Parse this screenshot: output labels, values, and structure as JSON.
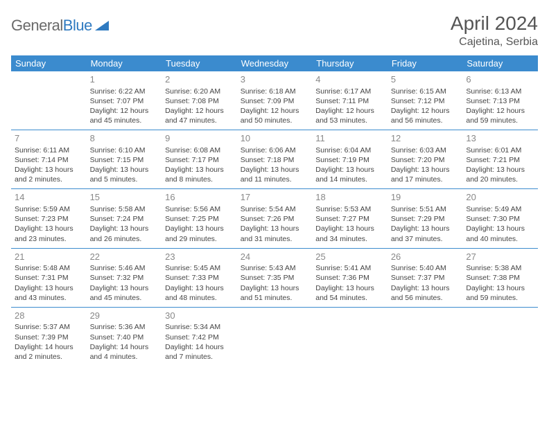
{
  "logo": {
    "text1": "General",
    "text2": "Blue"
  },
  "title": "April 2024",
  "location": "Cajetina, Serbia",
  "colors": {
    "header_bg": "#3b8bce",
    "header_text": "#ffffff",
    "grid_line": "#3b8bce",
    "body_text": "#444444",
    "daynum": "#888888",
    "logo_gray": "#6a6a6a",
    "logo_blue": "#2f7ac0"
  },
  "day_labels": [
    "Sunday",
    "Monday",
    "Tuesday",
    "Wednesday",
    "Thursday",
    "Friday",
    "Saturday"
  ],
  "weeks": [
    [
      null,
      {
        "n": "1",
        "sr": "6:22 AM",
        "ss": "7:07 PM",
        "dl": "12 hours and 45 minutes."
      },
      {
        "n": "2",
        "sr": "6:20 AM",
        "ss": "7:08 PM",
        "dl": "12 hours and 47 minutes."
      },
      {
        "n": "3",
        "sr": "6:18 AM",
        "ss": "7:09 PM",
        "dl": "12 hours and 50 minutes."
      },
      {
        "n": "4",
        "sr": "6:17 AM",
        "ss": "7:11 PM",
        "dl": "12 hours and 53 minutes."
      },
      {
        "n": "5",
        "sr": "6:15 AM",
        "ss": "7:12 PM",
        "dl": "12 hours and 56 minutes."
      },
      {
        "n": "6",
        "sr": "6:13 AM",
        "ss": "7:13 PM",
        "dl": "12 hours and 59 minutes."
      }
    ],
    [
      {
        "n": "7",
        "sr": "6:11 AM",
        "ss": "7:14 PM",
        "dl": "13 hours and 2 minutes."
      },
      {
        "n": "8",
        "sr": "6:10 AM",
        "ss": "7:15 PM",
        "dl": "13 hours and 5 minutes."
      },
      {
        "n": "9",
        "sr": "6:08 AM",
        "ss": "7:17 PM",
        "dl": "13 hours and 8 minutes."
      },
      {
        "n": "10",
        "sr": "6:06 AM",
        "ss": "7:18 PM",
        "dl": "13 hours and 11 minutes."
      },
      {
        "n": "11",
        "sr": "6:04 AM",
        "ss": "7:19 PM",
        "dl": "13 hours and 14 minutes."
      },
      {
        "n": "12",
        "sr": "6:03 AM",
        "ss": "7:20 PM",
        "dl": "13 hours and 17 minutes."
      },
      {
        "n": "13",
        "sr": "6:01 AM",
        "ss": "7:21 PM",
        "dl": "13 hours and 20 minutes."
      }
    ],
    [
      {
        "n": "14",
        "sr": "5:59 AM",
        "ss": "7:23 PM",
        "dl": "13 hours and 23 minutes."
      },
      {
        "n": "15",
        "sr": "5:58 AM",
        "ss": "7:24 PM",
        "dl": "13 hours and 26 minutes."
      },
      {
        "n": "16",
        "sr": "5:56 AM",
        "ss": "7:25 PM",
        "dl": "13 hours and 29 minutes."
      },
      {
        "n": "17",
        "sr": "5:54 AM",
        "ss": "7:26 PM",
        "dl": "13 hours and 31 minutes."
      },
      {
        "n": "18",
        "sr": "5:53 AM",
        "ss": "7:27 PM",
        "dl": "13 hours and 34 minutes."
      },
      {
        "n": "19",
        "sr": "5:51 AM",
        "ss": "7:29 PM",
        "dl": "13 hours and 37 minutes."
      },
      {
        "n": "20",
        "sr": "5:49 AM",
        "ss": "7:30 PM",
        "dl": "13 hours and 40 minutes."
      }
    ],
    [
      {
        "n": "21",
        "sr": "5:48 AM",
        "ss": "7:31 PM",
        "dl": "13 hours and 43 minutes."
      },
      {
        "n": "22",
        "sr": "5:46 AM",
        "ss": "7:32 PM",
        "dl": "13 hours and 45 minutes."
      },
      {
        "n": "23",
        "sr": "5:45 AM",
        "ss": "7:33 PM",
        "dl": "13 hours and 48 minutes."
      },
      {
        "n": "24",
        "sr": "5:43 AM",
        "ss": "7:35 PM",
        "dl": "13 hours and 51 minutes."
      },
      {
        "n": "25",
        "sr": "5:41 AM",
        "ss": "7:36 PM",
        "dl": "13 hours and 54 minutes."
      },
      {
        "n": "26",
        "sr": "5:40 AM",
        "ss": "7:37 PM",
        "dl": "13 hours and 56 minutes."
      },
      {
        "n": "27",
        "sr": "5:38 AM",
        "ss": "7:38 PM",
        "dl": "13 hours and 59 minutes."
      }
    ],
    [
      {
        "n": "28",
        "sr": "5:37 AM",
        "ss": "7:39 PM",
        "dl": "14 hours and 2 minutes."
      },
      {
        "n": "29",
        "sr": "5:36 AM",
        "ss": "7:40 PM",
        "dl": "14 hours and 4 minutes."
      },
      {
        "n": "30",
        "sr": "5:34 AM",
        "ss": "7:42 PM",
        "dl": "14 hours and 7 minutes."
      },
      null,
      null,
      null,
      null
    ]
  ],
  "labels": {
    "sunrise": "Sunrise:",
    "sunset": "Sunset:",
    "daylight": "Daylight:"
  }
}
